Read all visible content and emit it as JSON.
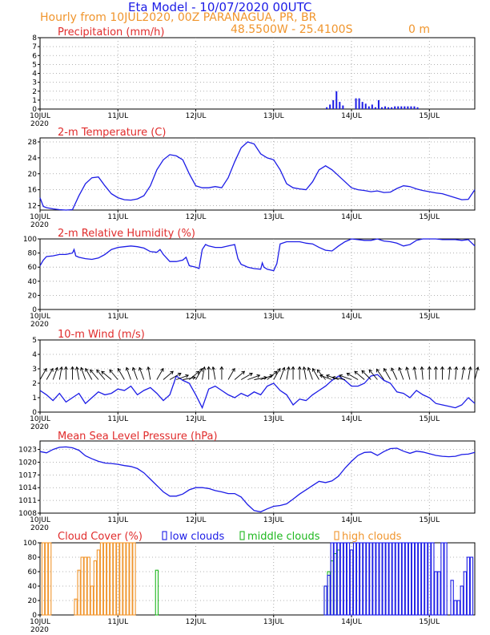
{
  "header": {
    "title": "Eta Model - 10/07/2020 00UTC",
    "subtitle": "Hourly from 10JUL2020, 00Z  PARANAGUA, PR, BR",
    "coords": "48.5500W - 25.4100S",
    "elevation": "0  m"
  },
  "x_axis": {
    "days": [
      "10JUL",
      "11JUL",
      "12JUL",
      "13JUL",
      "14JUL",
      "15JUL"
    ],
    "year": "2020",
    "range_hours": [
      0,
      134
    ]
  },
  "colors": {
    "series": "#1c1ce6",
    "title": "#e02c2c",
    "header": "#f0952d",
    "low": "#1c1ce6",
    "middle": "#1fb81f",
    "high": "#f0952d",
    "grid": "#9a9a9a"
  },
  "chart_data": [
    {
      "id": "precip",
      "type": "bar",
      "title": "Precipitation (mm/h)",
      "ylim": [
        0,
        8
      ],
      "yticks": [
        0,
        1,
        2,
        3,
        4,
        5,
        6,
        7,
        8
      ],
      "x_hours": [
        88,
        89,
        90,
        91,
        92,
        93,
        94,
        95,
        96,
        97,
        98,
        99,
        100,
        101,
        102,
        103,
        104,
        105,
        106,
        107,
        108,
        109,
        110,
        111,
        112,
        113,
        114,
        115,
        116
      ],
      "values": [
        0.2,
        0.5,
        1.0,
        2.0,
        0.8,
        0.4,
        0,
        0,
        0,
        1.2,
        1.2,
        0.8,
        0.6,
        0.3,
        0.5,
        0.2,
        1.0,
        0.2,
        0.3,
        0.2,
        0.2,
        0.3,
        0.3,
        0.3,
        0.3,
        0.3,
        0.3,
        0.3,
        0.2
      ]
    },
    {
      "id": "temp",
      "type": "line",
      "title": "2-m Temperature (C)",
      "ylim": [
        10.9,
        29
      ],
      "yticks": [
        12,
        16,
        20,
        24,
        28
      ],
      "x": [
        0,
        1,
        2,
        4,
        6,
        8,
        10,
        12,
        14,
        16,
        18,
        20,
        22,
        24,
        26,
        28,
        30,
        32,
        34,
        36,
        38,
        40,
        42,
        44,
        46,
        48,
        50,
        52,
        54,
        56,
        58,
        60,
        62,
        64,
        66,
        68,
        70,
        72,
        74,
        76,
        78,
        80,
        82,
        84,
        86,
        88,
        90,
        92,
        94,
        96,
        98,
        100,
        102,
        104,
        106,
        108,
        110,
        112,
        114,
        116,
        118,
        120,
        122,
        124,
        126,
        128,
        130,
        132,
        134
      ],
      "values": [
        14,
        11.8,
        11.5,
        11.2,
        11,
        10.9,
        11,
        14.5,
        17.5,
        19,
        19.2,
        17,
        15,
        14,
        13.5,
        13.4,
        13.7,
        14.5,
        17,
        21,
        23.5,
        24.8,
        24.5,
        23.5,
        20,
        17,
        16.5,
        16.5,
        16.8,
        16.5,
        19,
        23,
        26.5,
        28,
        27.5,
        25,
        24,
        23.5,
        21,
        17.5,
        16.5,
        16.2,
        16,
        18,
        21,
        22,
        21,
        19.5,
        18,
        16.5,
        16,
        15.8,
        15.5,
        15.7,
        15.3,
        15.4,
        16.3,
        17,
        16.8,
        16.2,
        15.8,
        15.5,
        15.2,
        15,
        14.5,
        14,
        13.5,
        13.6,
        16
      ]
    },
    {
      "id": "rh",
      "type": "line",
      "title": "2-m Relative Humidity (%)",
      "ylim": [
        0,
        100
      ],
      "yticks": [
        0,
        20,
        40,
        60,
        80,
        100
      ],
      "x": [
        0,
        1,
        2,
        4,
        6,
        8,
        10,
        10.5,
        11,
        12,
        14,
        16,
        18,
        20,
        22,
        24,
        26,
        28,
        30,
        32,
        34,
        36,
        37,
        38,
        40,
        42,
        44,
        45,
        46,
        48,
        49,
        50,
        51,
        52,
        54,
        56,
        58,
        60,
        61,
        62,
        63,
        64,
        66,
        68,
        68.5,
        69,
        70,
        72,
        73,
        74,
        76,
        78,
        80,
        82,
        84,
        86,
        88,
        90,
        92,
        94,
        96,
        98,
        100,
        102,
        104,
        106,
        108,
        110,
        112,
        114,
        116,
        118,
        120,
        122,
        124,
        126,
        128,
        130,
        132,
        134
      ],
      "values": [
        62,
        70,
        75,
        76,
        78,
        78,
        80,
        85,
        76,
        74,
        72,
        71,
        73,
        78,
        85,
        88,
        89,
        90,
        89,
        87,
        82,
        81,
        85,
        78,
        68,
        68,
        70,
        74,
        62,
        60,
        58,
        85,
        92,
        90,
        88,
        88,
        90,
        92,
        72,
        64,
        62,
        60,
        58,
        57,
        66,
        60,
        57,
        55,
        65,
        93,
        96,
        96,
        96,
        94,
        93,
        88,
        84,
        83,
        90,
        96,
        100,
        99,
        98,
        98,
        100,
        97,
        96,
        94,
        90,
        92,
        98,
        100,
        100,
        100,
        99,
        99,
        99,
        98,
        99,
        90
      ]
    },
    {
      "id": "wind",
      "type": "line",
      "title": "10-m Wind (m/s)",
      "ylim": [
        0,
        5
      ],
      "yticks": [
        0,
        1,
        2,
        3,
        4,
        5
      ],
      "x": [
        0,
        2,
        4,
        6,
        8,
        10,
        12,
        14,
        16,
        18,
        20,
        22,
        24,
        26,
        28,
        30,
        32,
        34,
        36,
        38,
        40,
        42,
        44,
        46,
        48,
        50,
        52,
        54,
        56,
        58,
        60,
        62,
        64,
        66,
        68,
        70,
        72,
        74,
        76,
        78,
        80,
        82,
        84,
        86,
        88,
        90,
        92,
        94,
        96,
        98,
        100,
        102,
        104,
        106,
        108,
        110,
        112,
        114,
        116,
        118,
        120,
        122,
        124,
        126,
        128,
        130,
        132,
        134
      ],
      "values": [
        1.5,
        1.2,
        0.8,
        1.3,
        0.7,
        1.0,
        1.3,
        0.6,
        1.0,
        1.4,
        1.2,
        1.3,
        1.6,
        1.5,
        1.8,
        1.2,
        1.5,
        1.7,
        1.3,
        0.8,
        1.2,
        2.5,
        2.2,
        2.0,
        1.2,
        0.3,
        1.6,
        1.8,
        1.5,
        1.2,
        1.0,
        1.3,
        1.1,
        1.4,
        1.2,
        1.8,
        2.0,
        1.5,
        1.2,
        0.5,
        0.9,
        0.8,
        1.2,
        1.5,
        1.8,
        2.2,
        2.5,
        2.2,
        1.8,
        1.8,
        2.0,
        2.5,
        2.6,
        2.2,
        2.0,
        1.4,
        1.3,
        1.0,
        1.5,
        1.2,
        1.0,
        0.6,
        0.5,
        0.4,
        0.3,
        0.5,
        1.0,
        0.6
      ],
      "vectors_dir_deg": [
        300,
        300,
        290,
        280,
        270,
        270,
        260,
        250,
        240,
        230,
        230,
        220,
        230,
        240,
        250,
        250,
        250,
        260,
        300,
        320,
        330,
        340,
        350,
        320,
        300,
        280,
        270,
        260,
        270,
        300,
        320,
        330,
        340,
        350,
        340,
        320,
        300,
        290,
        280,
        270,
        270,
        260,
        250,
        240,
        230,
        200,
        200,
        190,
        200,
        210,
        220,
        225,
        230,
        235,
        240,
        245,
        250,
        255,
        260,
        265,
        270,
        270,
        270,
        275,
        275,
        280,
        280,
        285
      ]
    },
    {
      "id": "mslp",
      "type": "line",
      "title": "Mean Sea Level Pressure (hPa)",
      "ylim": [
        1008,
        1025
      ],
      "yticks": [
        1008,
        1011,
        1014,
        1017,
        1020,
        1023
      ],
      "x": [
        0,
        2,
        4,
        6,
        8,
        10,
        12,
        14,
        16,
        18,
        20,
        22,
        24,
        26,
        28,
        30,
        32,
        34,
        36,
        38,
        40,
        42,
        44,
        46,
        48,
        50,
        52,
        54,
        56,
        58,
        60,
        62,
        64,
        66,
        68,
        70,
        72,
        74,
        76,
        78,
        80,
        82,
        84,
        86,
        88,
        90,
        92,
        94,
        96,
        98,
        100,
        102,
        104,
        106,
        108,
        110,
        112,
        114,
        116,
        118,
        120,
        122,
        124,
        126,
        128,
        130,
        132,
        134
      ],
      "values": [
        1022.5,
        1022.2,
        1023,
        1023.5,
        1023.6,
        1023.4,
        1022.8,
        1021.5,
        1020.8,
        1020.2,
        1019.8,
        1019.7,
        1019.5,
        1019.2,
        1019,
        1018.5,
        1017.5,
        1016,
        1014.5,
        1013,
        1012,
        1012,
        1012.5,
        1013.5,
        1014,
        1014,
        1013.8,
        1013.3,
        1013,
        1012.6,
        1012.6,
        1011.8,
        1010,
        1008.6,
        1008.3,
        1009,
        1009.6,
        1009.8,
        1010.2,
        1011.3,
        1012.5,
        1013.5,
        1014.5,
        1015.5,
        1015.2,
        1015.6,
        1016.7,
        1018.6,
        1020.2,
        1021.6,
        1022.3,
        1022.4,
        1021.6,
        1022.5,
        1023.2,
        1023.3,
        1022.6,
        1022.1,
        1022.6,
        1022.4,
        1022,
        1021.6,
        1021.4,
        1021.3,
        1021.4,
        1021.8,
        1021.9,
        1022.3
      ]
    },
    {
      "id": "cloud",
      "type": "bar",
      "title": "Cloud Cover (%)",
      "legend": [
        "low clouds",
        "middle clouds",
        "high clouds"
      ],
      "ylim": [
        0,
        100
      ],
      "yticks": [
        0,
        20,
        40,
        60,
        80,
        100
      ],
      "series": [
        {
          "name": "high clouds",
          "x": [
            1,
            2,
            3,
            11,
            12,
            13,
            14,
            15,
            16,
            17,
            18,
            19,
            20,
            21,
            22,
            23,
            24,
            25,
            26,
            27,
            28,
            29
          ],
          "values": [
            100,
            100,
            100,
            22,
            62,
            80,
            80,
            80,
            40,
            75,
            90,
            100,
            100,
            100,
            100,
            100,
            100,
            100,
            100,
            100,
            100,
            100
          ]
        },
        {
          "name": "middle clouds",
          "x": [
            36,
            88,
            89,
            90,
            91,
            92
          ],
          "values": [
            62,
            40,
            60,
            75,
            85,
            90
          ]
        },
        {
          "name": "low clouds",
          "x": [
            88,
            89,
            90,
            91,
            92,
            93,
            94,
            95,
            96,
            97,
            98,
            99,
            100,
            101,
            102,
            103,
            104,
            105,
            106,
            107,
            108,
            109,
            110,
            111,
            112,
            113,
            114,
            115,
            116,
            117,
            118,
            119,
            120,
            121,
            122,
            123,
            124,
            125,
            126,
            127,
            128,
            129,
            130,
            131,
            132,
            133
          ],
          "values": [
            40,
            55,
            100,
            100,
            100,
            100,
            100,
            100,
            90,
            100,
            100,
            100,
            100,
            100,
            100,
            100,
            100,
            100,
            100,
            100,
            100,
            100,
            100,
            100,
            100,
            100,
            100,
            100,
            100,
            100,
            100,
            100,
            100,
            100,
            60,
            60,
            100,
            100,
            0,
            48,
            20,
            20,
            40,
            60,
            80,
            80
          ]
        }
      ]
    }
  ]
}
